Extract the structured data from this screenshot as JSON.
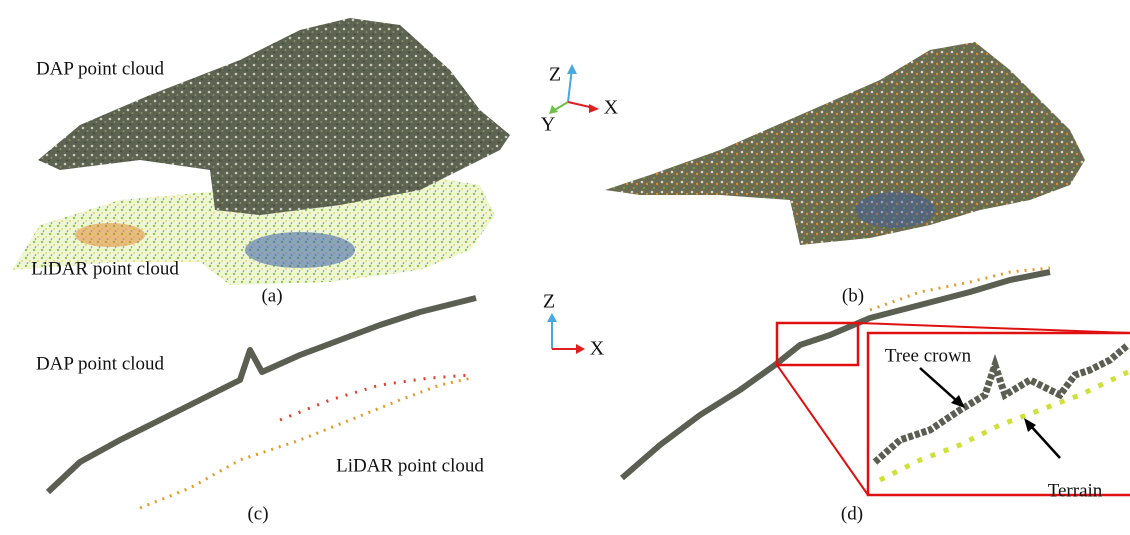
{
  "panel_a": {
    "caption": "(a)",
    "dap_label": "DAP point cloud",
    "lidar_label": "LiDAR point cloud"
  },
  "axes_3d": {
    "z": "Z",
    "y": "Y",
    "x": "X"
  },
  "panel_b": {
    "caption": "(b)"
  },
  "panel_c": {
    "caption": "(c)",
    "dap_label": "DAP point cloud",
    "lidar_label": "LiDAR point cloud"
  },
  "axes_2d": {
    "z": "Z",
    "x": "X"
  },
  "panel_d": {
    "caption": "(d)",
    "tree_crown_label": "Tree crown",
    "terrain_label": "Terrain"
  }
}
